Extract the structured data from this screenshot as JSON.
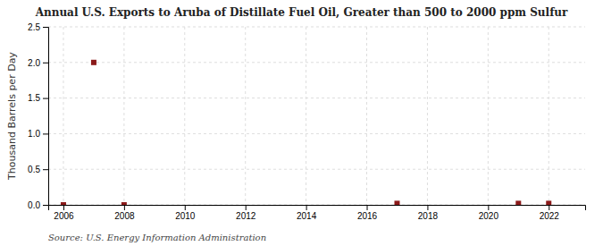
{
  "chart_data": {
    "type": "scatter",
    "title": "Annual U.S. Exports to Aruba of Distillate Fuel Oil, Greater than 500 to 2000 ppm Sulfur",
    "y_label": "Thousand Barrels per Day",
    "source": "Source: U.S. Energy Information Administration",
    "x": [
      2006,
      2007,
      2008,
      2017,
      2021,
      2022
    ],
    "values": [
      0,
      2,
      0,
      0.02,
      0.02,
      0.02
    ],
    "color": "#8b1a1a",
    "marker": "square",
    "xlim": [
      2005.5,
      2023.2
    ],
    "ylim": [
      0,
      2.5
    ],
    "xticks": [
      2006,
      2008,
      2010,
      2012,
      2014,
      2016,
      2018,
      2020,
      2022
    ],
    "yticks": [
      {
        "value": 0,
        "label": "0.0"
      },
      0.5,
      {
        "value": 1,
        "label": "1.0"
      },
      1.5,
      {
        "value": 2,
        "label": "2.0"
      },
      2.5
    ],
    "grid": true
  }
}
